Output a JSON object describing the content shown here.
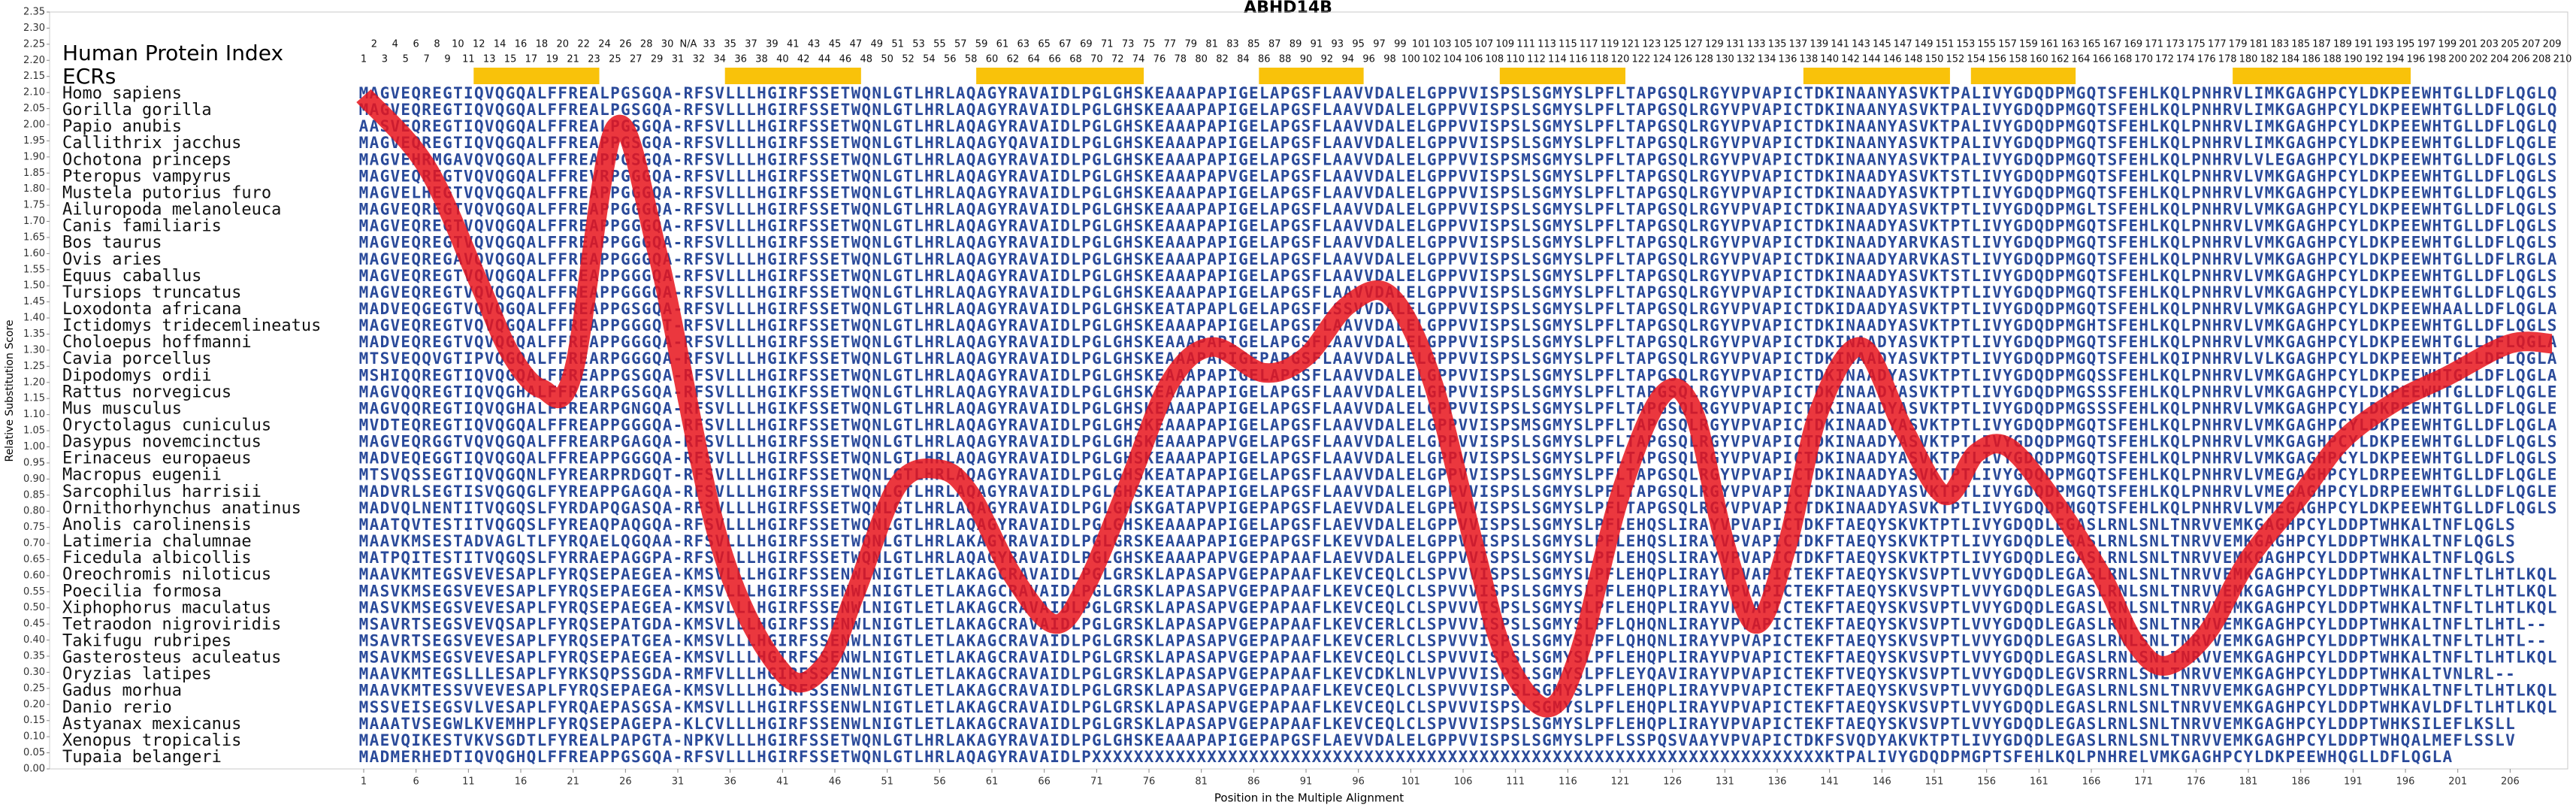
{
  "chart_data": {
    "type": "line",
    "title": "ABHD14B",
    "xlabel": "Position in the Multiple Alignment",
    "ylabel": "Relative Substitution Score",
    "xlim": [
      -29,
      211.5
    ],
    "ylim": [
      0,
      2.35
    ],
    "xticks": [
      1,
      6,
      11,
      16,
      21,
      26,
      31,
      36,
      41,
      46,
      51,
      56,
      61,
      66,
      71,
      76,
      81,
      86,
      91,
      96,
      101,
      106,
      111,
      116,
      121,
      126,
      131,
      136,
      141,
      146,
      151,
      156,
      161,
      166,
      171,
      176,
      181,
      186,
      191,
      196,
      201,
      206
    ],
    "yticks": [
      {
        "value": 0,
        "label": "0.00"
      },
      0.05,
      {
        "value": 0.1,
        "label": "0.10"
      },
      0.15,
      {
        "value": 0.2,
        "label": "0.20"
      },
      0.25,
      {
        "value": 0.3,
        "label": "0.30"
      },
      0.35,
      {
        "value": 0.4,
        "label": "0.40"
      },
      0.45,
      {
        "value": 0.5,
        "label": "0.50"
      },
      0.55,
      {
        "value": 0.6,
        "label": "0.60"
      },
      0.65,
      {
        "value": 0.7,
        "label": "0.70"
      },
      0.75,
      {
        "value": 0.8,
        "label": "0.80"
      },
      0.85,
      {
        "value": 0.9,
        "label": "0.90"
      },
      0.95,
      {
        "value": 1,
        "label": "1.00"
      },
      1.05,
      {
        "value": 1.1,
        "label": "1.10"
      },
      1.15,
      {
        "value": 1.2,
        "label": "1.20"
      },
      1.25,
      {
        "value": 1.3,
        "label": "1.30"
      },
      1.35,
      {
        "value": 1.4,
        "label": "1.40"
      },
      1.45,
      {
        "value": 1.5,
        "label": "1.50"
      },
      1.55,
      {
        "value": 1.6,
        "label": "1.60"
      },
      1.65,
      {
        "value": 1.7,
        "label": "1.70"
      },
      1.75,
      {
        "value": 1.8,
        "label": "1.80"
      },
      1.85,
      {
        "value": 1.9,
        "label": "1.90"
      },
      1.95,
      {
        "value": 2,
        "label": "2.00"
      },
      2.05,
      {
        "value": 2.1,
        "label": "2.10"
      },
      2.15,
      {
        "value": 2.2,
        "label": "2.20"
      },
      2.25,
      {
        "value": 2.3,
        "label": "2.30"
      },
      2.35
    ],
    "series": [
      {
        "color": "#e8141c",
        "x": [
          1,
          7,
          12,
          15,
          18,
          21,
          25,
          29,
          35,
          41,
          45,
          48,
          52,
          56,
          59,
          63,
          67,
          70,
          74,
          78,
          82,
          87,
          91,
          95,
          99,
          103,
          107,
          110,
          114,
          117,
          121,
          125,
          128,
          131,
          134,
          137,
          140,
          144,
          148,
          152,
          155,
          158,
          162,
          167,
          170,
          173,
          177,
          181,
          186,
          190,
          195,
          200,
          206,
          210
        ],
        "values": [
          2.09,
          1.87,
          1.51,
          1.29,
          1.18,
          1.23,
          1.99,
          1.61,
          0.7,
          0.3,
          0.32,
          0.55,
          0.88,
          0.93,
          0.85,
          0.6,
          0.45,
          0.57,
          0.88,
          1.2,
          1.31,
          1.23,
          1.28,
          1.44,
          1.47,
          1.21,
          0.7,
          0.35,
          0.19,
          0.35,
          0.85,
          1.16,
          1.11,
          0.7,
          0.45,
          0.7,
          1.11,
          1.31,
          1.06,
          0.85,
          0.98,
          1.0,
          0.85,
          0.6,
          0.4,
          0.32,
          0.42,
          0.65,
          0.85,
          1.02,
          1.14,
          1.22,
          1.32,
          1.32
        ]
      }
    ],
    "index_label": "Human Protein Index",
    "human_index": [
      1,
      2,
      3,
      4,
      5,
      6,
      7,
      8,
      9,
      10,
      11,
      12,
      13,
      14,
      15,
      16,
      17,
      18,
      19,
      20,
      21,
      22,
      23,
      24,
      25,
      26,
      27,
      28,
      29,
      30,
      31,
      "N/A",
      32,
      33,
      34,
      35,
      36,
      37,
      38,
      39,
      40,
      41,
      42,
      43,
      44,
      45,
      46,
      47,
      48,
      49,
      50,
      51,
      52,
      53,
      54,
      55,
      56,
      57,
      58,
      59,
      60,
      61,
      62,
      63,
      64,
      65,
      66,
      67,
      68,
      69,
      70,
      71,
      72,
      73,
      74,
      75,
      76,
      77,
      78,
      79,
      80,
      81,
      82,
      83,
      84,
      85,
      86,
      87,
      88,
      89,
      90,
      91,
      92,
      93,
      94,
      95,
      96,
      97,
      98,
      99,
      100,
      101,
      102,
      103,
      104,
      105,
      106,
      107,
      108,
      109,
      110,
      111,
      112,
      113,
      114,
      115,
      116,
      117,
      118,
      119,
      120,
      121,
      122,
      123,
      124,
      125,
      126,
      127,
      128,
      129,
      130,
      131,
      132,
      133,
      134,
      135,
      136,
      137,
      138,
      139,
      140,
      141,
      142,
      143,
      144,
      145,
      146,
      147,
      148,
      149,
      150,
      151,
      152,
      153,
      154,
      155,
      156,
      157,
      158,
      159,
      160,
      161,
      162,
      163,
      164,
      165,
      166,
      167,
      168,
      169,
      170,
      171,
      172,
      173,
      174,
      175,
      176,
      177,
      178,
      179,
      180,
      181,
      182,
      183,
      184,
      185,
      186,
      187,
      188,
      189,
      190,
      191,
      192,
      193,
      194,
      195,
      196,
      197,
      198,
      199,
      200,
      201,
      202,
      203,
      204,
      205,
      206,
      207,
      208,
      209,
      210
    ],
    "ecr_label": "ECRs",
    "ecr_color": "#f9c20a",
    "ecrs": [
      [
        12,
        23
      ],
      [
        36,
        48
      ],
      [
        60,
        75
      ],
      [
        87,
        96
      ],
      [
        110,
        121
      ],
      [
        139,
        152
      ],
      [
        155,
        164
      ],
      [
        180,
        196
      ]
    ],
    "sequence_color": "#2a4a9a",
    "species": [
      "Homo sapiens",
      "Gorilla gorilla",
      "Papio anubis",
      "Callithrix jacchus",
      "Ochotona princeps",
      "Pteropus vampyrus",
      "Mustela putorius furo",
      "Ailuropoda melanoleuca",
      "Canis familiaris",
      "Bos taurus",
      "Ovis aries",
      "Equus caballus",
      "Tursiops truncatus",
      "Loxodonta africana",
      "Ictidomys tridecemlineatus",
      "Choloepus hoffmanni",
      "Cavia porcellus",
      "Dipodomys ordii",
      "Rattus norvegicus",
      "Mus musculus",
      "Oryctolagus cuniculus",
      "Dasypus novemcinctus",
      "Erinaceus europaeus",
      "Macropus eugenii",
      "Sarcophilus harrisii",
      "Ornithorhynchus anatinus",
      "Anolis carolinensis",
      "Latimeria chalumnae",
      "Ficedula albicollis",
      "Oreochromis niloticus",
      "Poecilia formosa",
      "Xiphophorus maculatus",
      "Tetraodon nigroviridis",
      "Takifugu rubripes",
      "Gasterosteus aculeatus",
      "Oryzias latipes",
      "Gadus morhua",
      "Danio rerio",
      "Astyanax mexicanus",
      "Xenopus tropicalis",
      "Tupaia belangeri"
    ],
    "sequences": [
      "MAGVEQREGTIQVQGQALFFREALPGSGQA-RFSVLLLHGIRFSSETWQNLGTLHRLAQAGYRAVAIDLPGLGHSKEAAAPAPIGELAPGSFLAAVVDALELGPPVVISPSLSGMYSLPFLTAPGSQLRGYVPVAPICTDKINAANYASVKTPALIVYGDQDPMGQTSFEHLKQLPNHRVLIMKGAGHPCYLDKPEEWHTGLLDFLQGLQ",
      "MAGVEQREGTIQVQGQALFFREALPGSGQA-RFSVLLLHGIRFSSETWQNLGTLHRLAQAGYRAVAIDLPGLGHSKEAAAPAPIGELAPGSFLAAVVDALELGPPVVISPSLSGMYSLPFLTAPGSQLRGYVPVAPICTDKINAANYASVKTPALIVYGDQDPMGQTSFEHLKQLPNHRVLIMKGAGHPCYLDKPEEWHTGLLDFLQGLQ",
      "AASVEQREGTIQVQGQALFFREALPGSGQA-RFSVLLLHGIRFSSETWQNLGTLHRLAQAGYRAVAIDLPGLGHSKEAAAPAPIGELAPGSFLAAVVDALELGPPVVISPSLSGMYSLPFLTAPGSQLRGYVPVAPICTDKINAANYASVKTPALIVYGDQDPMGQTSFEHLKQLPNHRVLIMKGAGHPCYLDKPEEWHTGLLDFLQGLQ",
      "MAGVEQREGTIQVQGQALFFREAPPGSGQA-RFSVLLLHGIRFSSETWQNLGTLHRLAQAGYQAVAIDLPGLGHSKEAAAPAPIGELAPGSFLAAVVDALELGPPVVISPSLSGMYSLPFLTAPGSQLRGYVPVAPICTDKINAANYASVKTPALIVYGDQDPMGQTSFEHLKQLPNHRVLIMKGAGHPCYLDKPEEWHTGLLDFLQGLE",
      "MAGVEHRMGAVQVQGQALFFREAPPGSGQA-RFSVLLLHGIRFSSETWQNLGTLHRLAQAGYRAVAIDLPGLGHSKEAAAPAPIGELAPGSFLAAVVDALELGPPVVISPSMSGMYSLPFLTAPGSQLRGYVPVAPICTDKINAANYASVKTPALIVYGDQDPMGQTSFEHLKQLPNHRVLVLEGAGHPCYLDKPEEWHTGLLDFLQGLS",
      "MAGVEQREGTVQVQGQALFFREVRPGGGQA-RFSVLLLHGIRFSSETWQNLGTLHRLAQAGYRAVAIDLPGLGHSKEAAAPAPVGELAPGSFLAAVVDALELGPPVVISPSLSGMYSLPFLTAPGSQLRGYVPVAPICTDKINAADYASVKTSTLIVYGDQDPMGQTSFEHLKQLPNHRVLVMKGAGHPCYLDKPEEWHTGLLDFLQGLS",
      "MAGVELHEGTVQVQGQALFFREAPPGGGQA-RFSVLLLHGIRFSSETWQNLGTLHRLAQAGYRAVAIDLPGLGHSKEAAAPAPIGELAPGSFLAAVVDALELGPPVVISPSLSGMYSLPFLTAPGSQLRGYVPVAPICTDKINAADYASVKTPTLIVYGDQDPMGQTSFEHLKQLPNHRVLVMKGAGHPCYLDKPEEWHTGLLDFLQGLS",
      "MAGVEQREGTVQVQGQALFFREAPPGGGQA-RFSVLLLHGIRFSSETWQNLGTLHRLAQAGYRAVAIDLPGLGHSKEAAAPAPIGELAPGSFLAAVVDALELGPPVVISPSLSGMYSLPFLTAPGSQLRGYVPVAPICTDKINAADYASVKTPTLIVYGDQDPMGLTSFEHLKQLPNHRVLVMKGAGHPCYLDKPEEWHTGLLDFLQGLS",
      "MAGVEQREGTVQVQGQALFFREAPPGGGQA-RFSVLLLHGIRFSSETWQNLGTLHRLAQAGYRAVAIDLPGLGHSKEAAAPAPIGELAPGSFLAAVVDALELGPPVVISPSLSGMYSLPFLTAPGSQLRGYVPVAPICTDKINAADYASVKTPTLIVYGDQDPMGQTSFEHLKQLPNHRVLVMKGAGHPCYLDKPEEWHTGLLDFLQGLS",
      "MAGVEQREGTVQVQGQALFFREAPPGGGQA-RFSVLLLHGIRFSSETWQNLGTLHRLAQAGYRAVAIDLPGLGHSKEAAAPAPIGELAPGSFLAAVVDALELGPPVVISPSLSGMYSLPFLTAPGSQLRGYVPVAPICTDKINAADYARVKASTLIVYGDQDPMGQTSFEHLKQLPNHRVLVMKGAGHPCYLDKPEEWHTGLLDFLQGLS",
      "MAGVEQREGAVQVQGQALFFREAPPGGGQA-RFSVLLLHGIRFSSETWQNLGTLHRLAQAGYRAVAIDLPGLGHSKEAAAPAPIGELAPGSFLAAVVDALELGPPVVISPSLSGMYSLPFLTAPGSQLRGYVPVAPICTDKINAADYARVKASTLIVYGDQDPMGQTSFEHLKQLPNHRVLVMKGAGHPCYLDKPEEWHTGLLDFLRGLA",
      "MAGVEQREGTVQVQGQALFFREAPPGGGQA-RFSVLLLHGIRFSSETWQNLGTLHRLAQAGYRAVAIDLPGLGHSKEAAAPAPIGELAPGSFLAAVVDALELGPPVVISPSLSGMYSLPFLTAPGSQLRGYVPVAPICTDKINAADYASVKTSTLIVYGDQDPMGQTSFEHLKQLPNHRVLVMKGAGHPCYLDKPEEWHTGLLDFLQGLS",
      "MAGVEQREGTVQVQGQALFFREAPPGGGQA-RFSVLLLHGIRFSSETWQNLGTLHRLAQAGYRAVAIDLPGLGHSKEAAAPAPIGELAPGSFLAAVVDALELGPPVVISPSLSGMYSLPFLTAPGSQLRGYVPVAPICTDKINAADYASVKTPTLIVYGDQDPMGQTSFEHLKQLPNHRVLVMKGAGHPCYLDKPEEWHTGLLDFLQGLS",
      "MADVEQGEGTVQVQGQALFFREAPPGSGQA-RFSVLLLHGIRFSSETWQNLGTLHRLAQAGYRAVAIDLPGLGHSKEATAPAPLGELAPGSFLSSVVDALELGPPVVISPSLSGMYSLPFLTAPGSQLRGYVPVAPICTDKIDAADYASVKTPTLIVYGDQDPMGQTSFEHLKQLPNHRVLVMKGAGHPCYLDKPEEWHAALLDFLQGLA",
      "MAGVEQREGTVQVQGQALFFREAPPGGGQT-RFSVLLLHGIRFSSETWQNLGTLHRLAQAGYRAVAIDLPGLGHSKEAAAPAPIGELAPGSFLAAVVDALELGPPVVISPSLSGMYSLPFLTAPGSQLRGYVPVAPICTDKINAADYASVKTPTLIVYGDQDPMGHTSFEHLKQLPNHRVLVMKGAGHPCYLDKPEEWHTGLLDFLQGLS",
      "MADVEQREGTVQVQGQALFFREAPPGGGQA-RFSVLLLHGIRFSSETWQNLGTLHRLAQAGYRAVAIDLPGLGHSKEAAAPAPIGELAPGSFLAAVVDALELGPPVVISPSLSGMYSLPFLTAPGSQLRGYVPVAPICTDKINAADYASVKTPTLIVYGDQDPMGQTSFEHLKQLPNHRVLVMKGAGHPCYLDKPEEWHTGLLDFLQGLA",
      "MTSVEQQVGTIPVQGQALFFREARPGGGQA-RFSVLLLHGIKFSSETWQNLGTLHRLAQAGYRAVAIDLPGLGHSKEAAAPAPIGEPAPGSFLAAVVDALELGPPVVISPSLSGMYSLPFLTAPGSQLRGYVPVAPICTDKINAADYASVKTPTLIVYGDQDPMGQTSFEHLKQIPNHRVLVLKGAGHPCYLDKPEEWHTGLLDFLQGLA",
      "MSHIQQREGTIQVQGQALFFREAPPGSGQA-RFSVLLLHGIRFSSETWQNLGTLHRLAQAGYRAVAIDLPGLGHSKEAAAPAPIGELAPGSFLAAVVDALELGPPVVISPSLSGMYSLPFLTAPGSQLRGYVPVAPICTDKINAADYASVKTPTLIVYGDQDPMGQSSFEHLKQLPNHRVLVMKGAGHPCYLDKPEEWHTGLLDFLQGLA",
      "MAGVQQREGTIQVQGHALFFREARPGSGQA-RFSVLLLHGIKFSSETWQNLGTLHRLAQAGYRAVAIDLPGLGHSKEAAAPAPIGELAPGSFLAAVVDALELGPPVVISPSLSGMYSLPFLTAPGSQLRGYVPVAPICTDKINAADYASVKTPTLIVYGDQDPMGSSSFEHLKQLPNHRVLVMKGAGHPCYLDKPEEWHTGLLDFLQGLE",
      "MAGVQQREGTIQVQGHALFFREARPGNGQA-RFSVLLLHGIKFSSETWQNLGTLHRLAQAGYRAVAIDLPGLGHSKEAAAPAPIGELAPGSFLAAVVDALELGPPVVISPSLSGMYSLPFLTAPGSQLRGYVPVAPICTDKINAADYASVKTPTLIVYGDQDPMGSSSFEHLKQLPNHRVLVMKGAGHPCYLDKPEEWHTGLLDFLQGLE",
      "MVDTEQREGTIQVQGQALFFREAPPGGGQA-RFSVLLLHGIRFSSETWQNLGTLHRLAQAGYRAVAIDLPGLGHSKEAAAPAPIGELAPGSFLAAVVDALELGPPVVISPSMSGMYSLPFLTAPGSQLRGYVPVAPICTDKINAADYASVKTPTLIVYGDQDPMGQTSFEHLKQLPNHRVLVMKGAGHPCYLDKPEEWHTGLLDFLQGLA",
      "MAGVEQRGGTVQVQGQALFFREARPGAGQA-RFSVLLLHGIRFSSETWQNLGTLHRLAQAGYRAVAIDLPGLGHSKEAAAPAPVGELAPGSFLAAVVDALELGPPVVISPSLSGMYSLPFLTAPGSQLRGYVPVAPICTDKINAADYASVKTPTLIVYGDQDPMGQTSFEHLKQLPNHRVLVMKGAGHPCYLDKPEEWHTGLLDFLQGLS",
      "MADVEQEGGTIQVQGQALFFREAPPGGGQA-RFSVLLLHGIRFSSETWQNLGTLHRLAQAGYRAVAIDLPGLGHSKEAAAPAPIGELAPGSFLAAVVDALELGPPVVISPSLSGMYSLPFLTAPGSQLRGYVPVAPICTDKINAADYASVKTPTLIVYGDQDPMGQTSFEHLKQLPNHRVLVMKGAGHPCYLDKPEEWHTGLLDFLQGLS",
      "MTSVQSSEGTIQVQGQNLFYREARPRDGQT-RFSVLLLHGIRFSSETWQNLGTLHRLAQAGYRAVAIDLPGLGHSKEATAPAPIGELAPGSFLAAVVDALELGPPVVISPSLSGMYSLPFLTAPGSQLRGYVPVAPICTDKINAADYASVKTPTLIVYGDQDPMGQTSFEHLKQLPNHRVLVMEGAGHPCYLDRPEEWHTGLLDFLQGLE",
      "MADVRLSEGTISVQGQGLFYREAPPGAGQA-RFSVLLLHGIRFSSETWQNLGTLHRLAQAGYRAVAIDLPGLGHSKEATAPAPIGELAPGSFLAAVVDALELGPPVVISPSLSGMYSLPFLTAPGSQLRGYVPVAPICTDKINAADYASVKTPTLIVYGDQDPMGQTSFEHLKQLPNHRVLVMEGAGHPCYLDRPEEWHTGLLDFLQGLE",
      "MADVQLNENTITVQGQSLFYRDAPQGASQA-RFSVLLLHGIRFSSETWQNLGTLHRLAQAGYRAVAIDLPGLGHSKGATAPVPIGEPAPGSFLAEVVDALELGPPVVISPSLSGMYSLPFLTAPGSQLRGYVPVAPICTDKINAADYASVKTPTLIVYGDQDPMGQTSFEHLKQLPNHRVLVMEGAGHPCYLDKPEEWHTGLLDFLQGLS",
      "MAATQVTESTITVQGQSLFYREAQPAQGQA-RFSVLLLHGIRFSSETWQNLGTLHRLAQAGYRAVAIDLPGLGHSKEAAAPAPIGELAPGSFLAEVVDALELGPPVVISPSLSGMYSLPFLEHQSLIRAYVPVAPICTDKFTAEQYSKVKTPTLIVYGDQDLEGASLRNLSNLTNRVVEMKGAGHPCYLDDPTWHKALTNFLQGLS",
      "MAAVKMSESTADVAGLTLFYRQAELQGQAA-RFSVLLLHGIRFSSETWQNLGTLHRLAKAGYRAVAIDLPGLGRSKEAAAPAPIGEPAPGSFLKEVVDALELGPPVVISPSLSGMYSLPFLEHQSLIRAYVPVAPICTDKFTAEQYSKVKTPTLIVYGDQDLEGASLRNLSNLTNRVVEMKGAGHPCYLDDPTWHKALTNFLQGLS",
      "MATPQITESTITVQGQSLFYRRAEPAGGPA-RFSVLLLHGIRFSSETWQNLGTLHRLAQAGYRAVAIDLPGLGHSKEAAAPAPVGEPAPAAFLAEVVDALELGPPVVISPSLSGMYSLPFLEHQSLIRAYVPVAPICTDKFTAEQYSKVKTPTLIVYGDQDLEGASLRNLSNLTNRVVEMKGAGHPCYLDDPTWHKALTNFLQGLS",
      "MAAVKMTEGSVEVESAPLFYRQSEPAEGEA-KMSVLLLHGIRFSSENWLNIGTLETLAKAGCRAVAIDLPGLGRSKLAPASAPVGEPAPAAFLKEVCEQLCLSPVVVISPSLSGMYSLPFLEHQPLIRAYVPVAPICTEKFTAEQYSKVSVPTLVVYGDQDLEGASLRNLSNLTNRVVEMKGAGHPCYLDDPTWHKALTNFLTLHTLKQL",
      "MASVKMSEGSVEVESAPLFYRQSEPAEGEA-KMSVLLLHGIRFSSENWLNIGTLETLAKAGCRAVAIDLPGLGRSKLAPASAPVGEPAPAAFLKEVCEQLCLSPVVVISPSLSGMYSLPFLEHQPLIRAYVPVAPICTEKFTAEQYSKVSVPTLVVYGDQDLEGASLRNLSNLTNRVVEMKGAGHPCYLDDPTWHKALTNFLTLHTLKQL",
      "MASVKMSEGSVEVESAPLFYRQSEPAEGEA-KMSVLLLHGIRFSSENWLNIGTLETLAKAGCRAVAIDLPGLGRSKLAPASAPVGEPAPAAFLKEVCEQLCLSPVVVISPSLSGMYSLPFLEHQPLIRAYVPVAPICTEKFTAEQYSKVSVPTLVVYGDQDLEGASLRNLSNLTNRVVEMKGAGHPCYLDDPTWHKALTNFLTLHTLKQL",
      "MSAVRTSEGSVEVQSAPLFYRQSEPATGDA-KMSVLLLHGIRFSSENWLNIGTLETLAKAGCRAVAIDLPGLGRSKLAPASAPVGEPAPAAFLKEVCERLCLSPVVVISPSLSGMYSLPFLQHQNLIRAYVPVAPICTEKFTAEQYSKVSVPTLVVYGDQDLEGASLRNLSNLTNRVVEMKGAGHPCYLDDPTWHKALTNFLTLHTL--",
      "MSAVRTSEGSVEVESAPLFYRQSEPATGEA-KMSVLLLHGIRFSSENWLNIGTLETLAKAGCRAVAIDLPGLGRSKLAPASAPVGEPAPAAFLKEVCERLCLSPVVVISPSLSGMYSLPFLQHQNLIRAYVPVAPICTEKFTAEQYSKVSVPTLVVYGDQDLEGASLRNLSNLTNRVVEMKGAGHPCYLDDPTWHKALTNFLTLHTL--",
      "MSAVKMSEGSVEVESAPLFYRQSEPAEGEA-KMSVLLLHGIRFSSENWLNIGTLETLAKAGCRAVAIDLPGLGRSKLAPASAPVGEPAPAAFLKEVCEQLCLSPVVVISPSLSGMYSLPFLEHQPLIRAYVPVAPICTEKFTAEQYSKVSVPTLVVYGDQDLEGASLRNLSNLTNRVVEMKGAGHPCYLDDPTWHKALTNFLTLHTLKQL",
      "MAAVKMTEGSLLLESAPLFYRKSQPSSGDA-RMFVLLLHGIRFSSENWLNIGTLETLAKAGCRAVAIDLPGLGRSKLAPASAPVGEPAPAAFLKEVCDKLNLVPVVVISPSLSGMYSLPFLEYQAVIRAYVPVAPICTEKFTVEQYSKVSVPTLVVYGDQDLEGVSRRNLSNLTNRVVEMKGAGHPCYLDDPTWHKALTVNLRL--",
      "MAAVKMTESSVVEVESAPLFYRQSEPAEGA-KMSVLLLHGIRFSSENWLNIGTLETLAKAGCRAVAIDLPGLGRSKLAPASAPVGEPAPAAFLKEVCEQLCLSPVVVISPSLSGMYSLPFLEHQPLIRAYVPVAPICTEKFTAEQYSKVSVPTLVVYGDQDLEGASLRNLSNLTNRVVEMKGAGHPCYLDDPTWHKALTNFLTLHTLKQL",
      "MSSVEISEGSVLVESAPLFYRQAEPASGSA-KMSVLLLHGIRFSSENWLNIGTLETLAKAGCRAVAIDLPGLGRSKLAPASAPVGEPAPAAFLKEVCEQLCLSPVVVISPSLSGMYSLPFLEHQPLIRAYVPVAPICTEKFTAEQYSKVSVPTLVVYGDQDLEGASLRNLSNLTNRVVEMKGAGHPCYLDDPTWHKAVLDFLTLHTLKQL",
      "MAAATVSEGWLKVEMHPLFYRQSEPAGEPA-KLCVLLLHGIRFSSENWLNIGTLETLAKAGCRAVAIDLPGLGRSKLAPASAPVGEPAPAAFLKEVCEQLCLSPVVVISPSLSGMYSLPFLEHQPLIRAYVPVAPICTEKFTAEQYSKVSVPTLVVYGDQDLEGASLRNLSNLTNRVVEMKGAGHPCYLDDPTWHKSILEFLKSLL",
      "MAEVQIKESTVKVSGDTLFYREALPAPGTA-NPKVLLLHGIRFSSETWQNLGTLHRLAKAGYRAVAIDLPGLGHSKEAAAPAPIGEPAPGSFLAEVVDALELGPPVVISPSLSGMYSLPFLSSPQSVAAYVPVAPICTDKFSVQDYAKVKTPTLIVYGDQDLEGASLRNLSNLTNRVVEMKGAGHPCYLDDPTWHQALMEFLSSLV",
      "MADMERHEDTIQVQGHQLFFREAPPGSGQA-RFSVLLLHGIRFSSETWQNLGTLHRLAQAGYRAVAIDLPXXXXXXXXXXXXXXXXXXXXXXXXXXXXXXXXXXXXXXXXXXXXXXXXXXXXXXXXXXXXXXXXXXXXXXKTPALIVYGDQDPMGPTSFEHLKQLPNHRELVMKGAGHPCYLDKPEEWHQGLLDFLQGLA"
    ]
  }
}
